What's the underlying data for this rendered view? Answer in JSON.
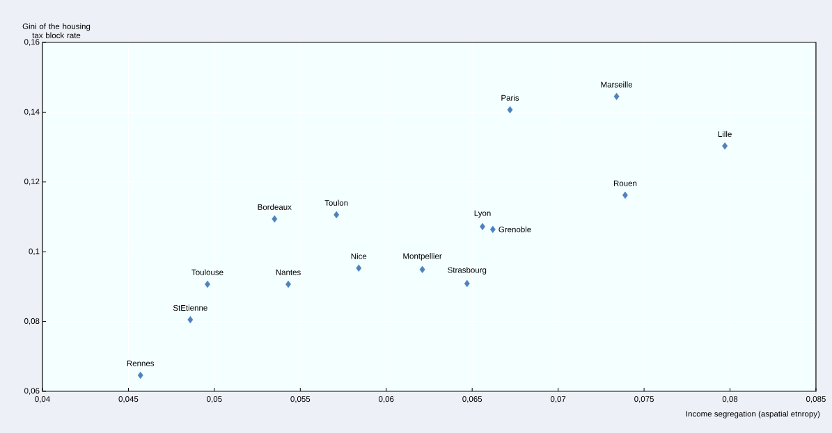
{
  "chart_data": {
    "type": "scatter",
    "xlabel": "Income segregation (aspatial etnropy)",
    "ylabel": "Gini of the housing tax block rate",
    "x": [
      0.0457,
      0.0486,
      0.0496,
      0.0543,
      0.0535,
      0.0571,
      0.0584,
      0.0621,
      0.0647,
      0.0656,
      0.0662,
      0.0672,
      0.0734,
      0.0739,
      0.0797
    ],
    "values": [
      0.0646,
      0.0805,
      0.0907,
      0.0907,
      0.1094,
      0.1106,
      0.0953,
      0.0949,
      0.0909,
      0.1072,
      0.1064,
      0.1407,
      0.1445,
      0.1162,
      0.1303
    ],
    "value_labels": [
      "Rennes",
      "StEtienne",
      "Toulouse",
      "Nantes",
      "Bordeaux",
      "Toulon",
      "Nice",
      "Montpellier",
      "Strasbourg",
      "Lyon",
      "Grenoble",
      "Paris",
      "Marseille",
      "Rouen",
      "Lille"
    ],
    "color": "#4f81bd",
    "marker": "diamond",
    "grid": true,
    "xlim": [
      0.04,
      0.085
    ],
    "xticks": [
      {
        "value": 0.04,
        "label": "0,04"
      },
      {
        "value": 0.045,
        "label": "0,045"
      },
      {
        "value": 0.05,
        "label": "0,05"
      },
      {
        "value": 0.055,
        "label": "0,055"
      },
      {
        "value": 0.06,
        "label": "0,06"
      },
      {
        "value": 0.065,
        "label": "0,065"
      },
      {
        "value": 0.07,
        "label": "0,07"
      },
      {
        "value": 0.075,
        "label": "0,075"
      },
      {
        "value": 0.08,
        "label": "0,08"
      },
      {
        "value": 0.085,
        "label": "0,085"
      }
    ],
    "ylim": [
      0.06,
      0.16
    ],
    "yticks": [
      {
        "value": 0.06,
        "label": "0,06"
      },
      {
        "value": 0.08,
        "label": "0,08"
      },
      {
        "value": 0.1,
        "label": "0,1"
      },
      {
        "value": 0.12,
        "label": "0,12"
      },
      {
        "value": 0.14,
        "label": "0,14"
      },
      {
        "value": 0.16,
        "label": "0,16"
      }
    ]
  }
}
